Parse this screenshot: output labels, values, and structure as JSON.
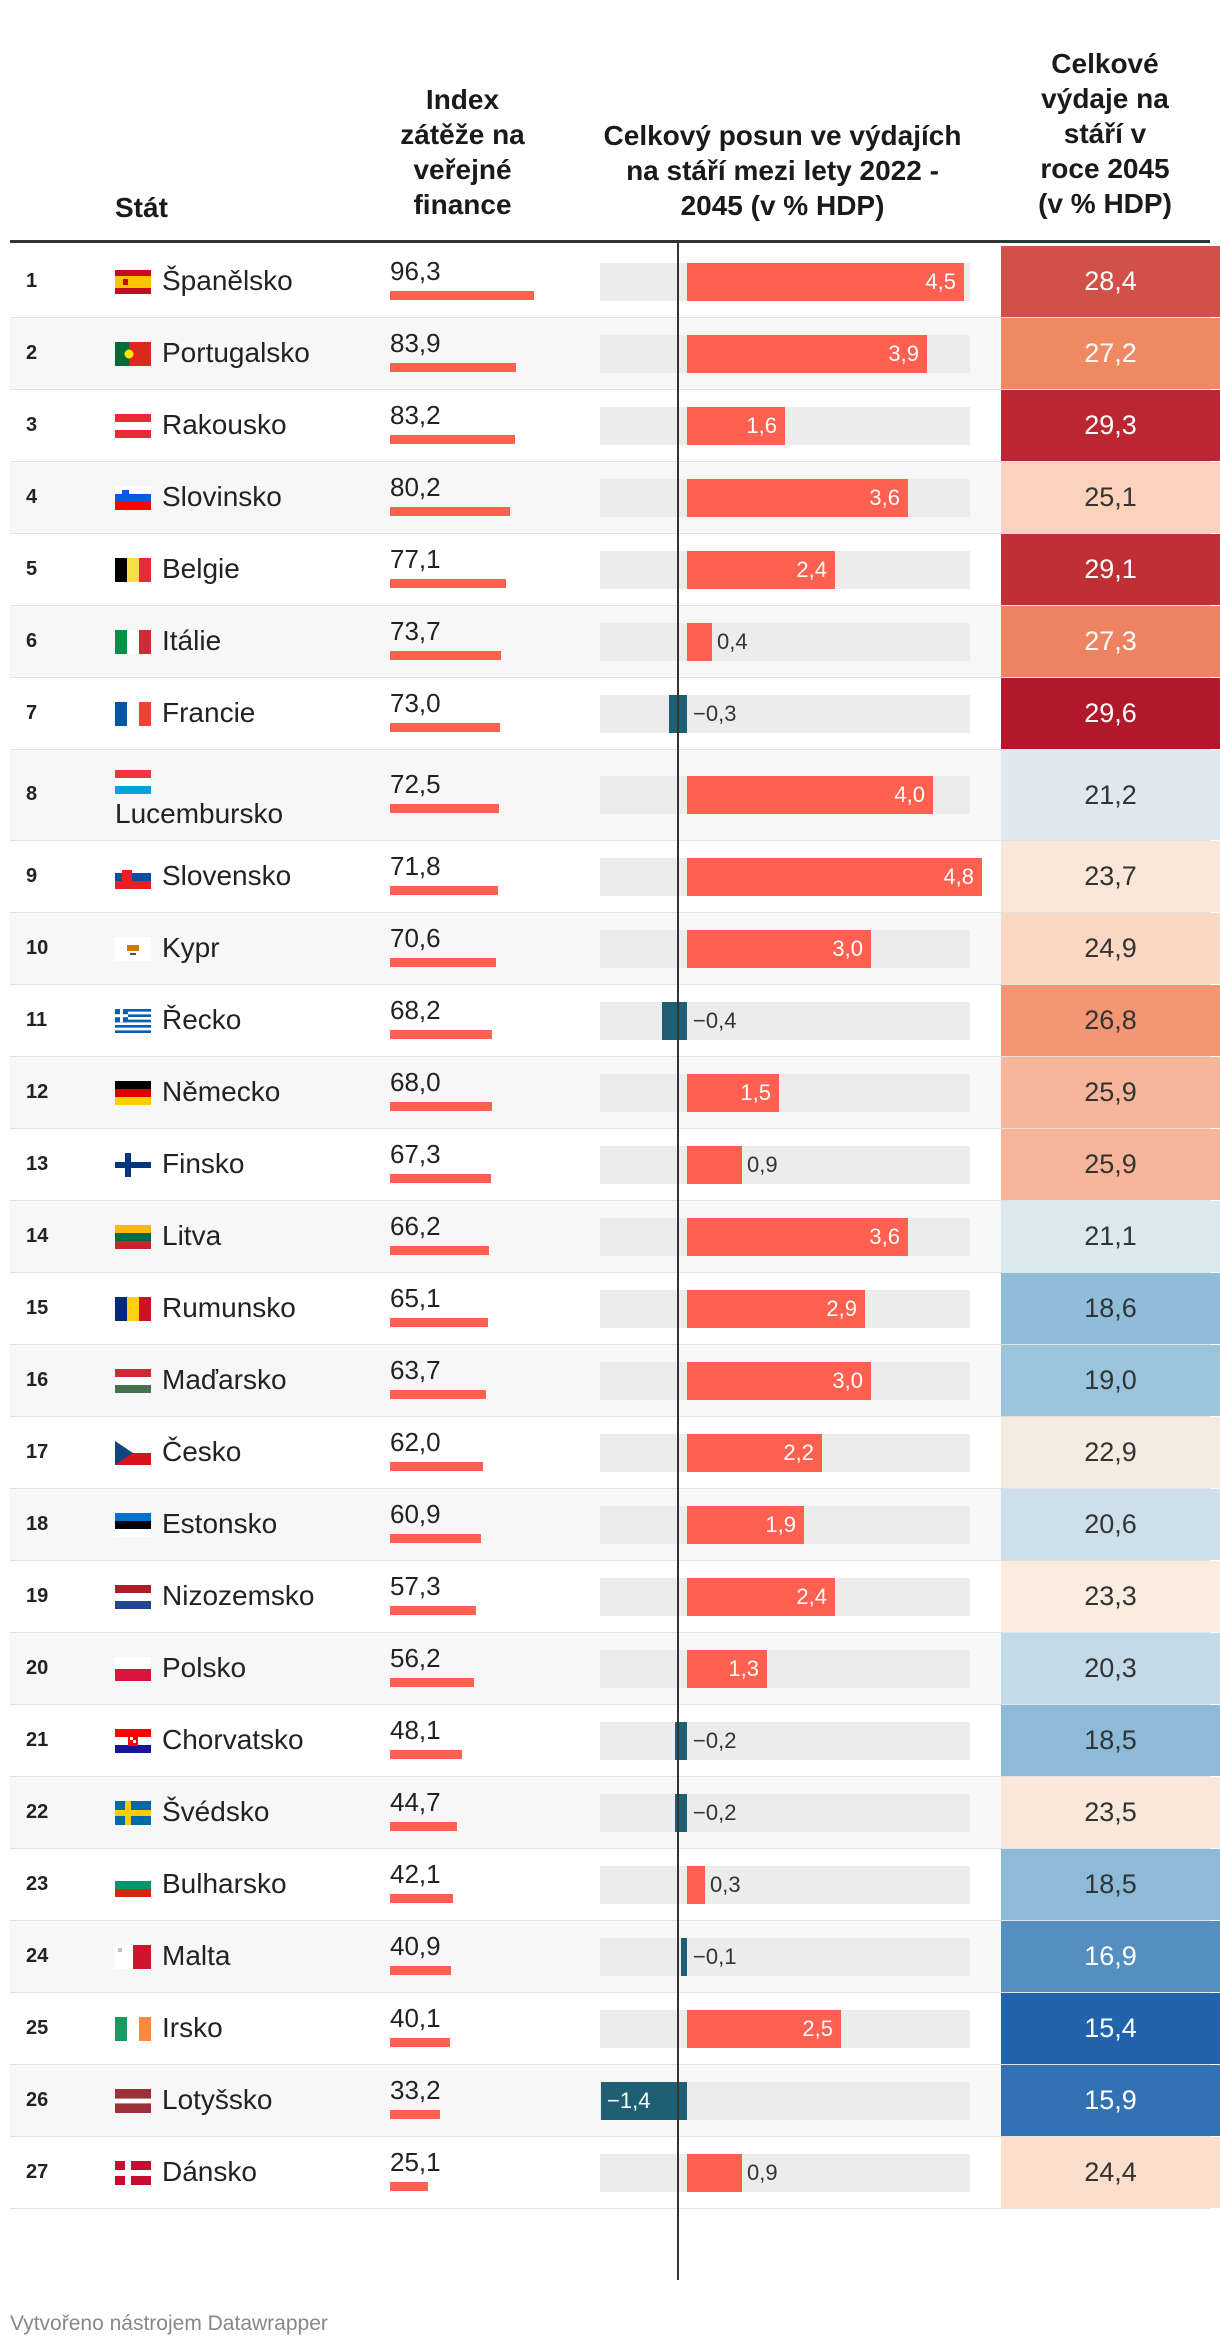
{
  "headers": {
    "country": "Stát",
    "index_lines": [
      "Index",
      "zátěže na",
      "veřejné",
      "finance"
    ],
    "shift_lines": [
      "Celkový posun ve výdajích",
      "na stáří mezi lety 2022 -",
      "2045 (v % HDP)"
    ],
    "total_lines": [
      "Celkové",
      "výdaje na",
      "stáří v",
      "roce 2045",
      "(v % HDP)"
    ]
  },
  "footer": "Vytvořeno nástrojem Datawrapper",
  "colors": {
    "positive_bar": "#ff6050",
    "negative_bar": "#1f5f74",
    "bar_background": "#ececec"
  },
  "chart_data": {
    "type": "table",
    "title": "",
    "columns": [
      "Stát",
      "Index zátěže na veřejné finance",
      "Celkový posun ve výdajích na stáří mezi lety 2022 - 2045 (v % HDP)",
      "Celkové výdaje na stáří v roce 2045 (v % HDP)"
    ],
    "shift_range": [
      -1.4,
      4.8
    ],
    "index_range": [
      0,
      100
    ],
    "rows": [
      {
        "rank": "1",
        "country": "Španělsko",
        "flag": "spain-flag",
        "index": 96.3,
        "index_label": "96,3",
        "shift": 4.5,
        "shift_label": "4,5",
        "total": 28.4,
        "total_label": "28,4"
      },
      {
        "rank": "2",
        "country": "Portugalsko",
        "flag": "portugal-flag",
        "index": 83.9,
        "index_label": "83,9",
        "shift": 3.9,
        "shift_label": "3,9",
        "total": 27.2,
        "total_label": "27,2"
      },
      {
        "rank": "3",
        "country": "Rakousko",
        "flag": "austria-flag",
        "index": 83.2,
        "index_label": "83,2",
        "shift": 1.6,
        "shift_label": "1,6",
        "total": 29.3,
        "total_label": "29,3"
      },
      {
        "rank": "4",
        "country": "Slovinsko",
        "flag": "slovenia-flag",
        "index": 80.2,
        "index_label": "80,2",
        "shift": 3.6,
        "shift_label": "3,6",
        "total": 25.1,
        "total_label": "25,1"
      },
      {
        "rank": "5",
        "country": "Belgie",
        "flag": "belgium-flag",
        "index": 77.1,
        "index_label": "77,1",
        "shift": 2.4,
        "shift_label": "2,4",
        "total": 29.1,
        "total_label": "29,1"
      },
      {
        "rank": "6",
        "country": "Itálie",
        "flag": "italy-flag",
        "index": 73.7,
        "index_label": "73,7",
        "shift": 0.4,
        "shift_label": "0,4",
        "total": 27.3,
        "total_label": "27,3"
      },
      {
        "rank": "7",
        "country": "Francie",
        "flag": "france-flag",
        "index": 73.0,
        "index_label": "73,0",
        "shift": -0.3,
        "shift_label": "−0,3",
        "total": 29.6,
        "total_label": "29,6"
      },
      {
        "rank": "8",
        "country": "Lucembursko",
        "flag": "luxembourg-flag",
        "index": 72.5,
        "index_label": "72,5",
        "shift": 4.0,
        "shift_label": "4,0",
        "total": 21.2,
        "total_label": "21,2"
      },
      {
        "rank": "9",
        "country": "Slovensko",
        "flag": "slovakia-flag",
        "index": 71.8,
        "index_label": "71,8",
        "shift": 4.8,
        "shift_label": "4,8",
        "total": 23.7,
        "total_label": "23,7"
      },
      {
        "rank": "10",
        "country": "Kypr",
        "flag": "cyprus-flag",
        "index": 70.6,
        "index_label": "70,6",
        "shift": 3.0,
        "shift_label": "3,0",
        "total": 24.9,
        "total_label": "24,9"
      },
      {
        "rank": "11",
        "country": "Řecko",
        "flag": "greece-flag",
        "index": 68.2,
        "index_label": "68,2",
        "shift": -0.4,
        "shift_label": "−0,4",
        "total": 26.8,
        "total_label": "26,8"
      },
      {
        "rank": "12",
        "country": "Německo",
        "flag": "germany-flag",
        "index": 68.0,
        "index_label": "68,0",
        "shift": 1.5,
        "shift_label": "1,5",
        "total": 25.9,
        "total_label": "25,9"
      },
      {
        "rank": "13",
        "country": "Finsko",
        "flag": "finland-flag",
        "index": 67.3,
        "index_label": "67,3",
        "shift": 0.9,
        "shift_label": "0,9",
        "total": 25.9,
        "total_label": "25,9"
      },
      {
        "rank": "14",
        "country": "Litva",
        "flag": "lithuania-flag",
        "index": 66.2,
        "index_label": "66,2",
        "shift": 3.6,
        "shift_label": "3,6",
        "total": 21.1,
        "total_label": "21,1"
      },
      {
        "rank": "15",
        "country": "Rumunsko",
        "flag": "romania-flag",
        "index": 65.1,
        "index_label": "65,1",
        "shift": 2.9,
        "shift_label": "2,9",
        "total": 18.6,
        "total_label": "18,6"
      },
      {
        "rank": "16",
        "country": "Maďarsko",
        "flag": "hungary-flag",
        "index": 63.7,
        "index_label": "63,7",
        "shift": 3.0,
        "shift_label": "3,0",
        "total": 19.0,
        "total_label": "19,0"
      },
      {
        "rank": "17",
        "country": "Česko",
        "flag": "czechia-flag",
        "index": 62.0,
        "index_label": "62,0",
        "shift": 2.2,
        "shift_label": "2,2",
        "total": 22.9,
        "total_label": "22,9"
      },
      {
        "rank": "18",
        "country": "Estonsko",
        "flag": "estonia-flag",
        "index": 60.9,
        "index_label": "60,9",
        "shift": 1.9,
        "shift_label": "1,9",
        "total": 20.6,
        "total_label": "20,6"
      },
      {
        "rank": "19",
        "country": "Nizozemsko",
        "flag": "netherlands-flag",
        "index": 57.3,
        "index_label": "57,3",
        "shift": 2.4,
        "shift_label": "2,4",
        "total": 23.3,
        "total_label": "23,3"
      },
      {
        "rank": "20",
        "country": "Polsko",
        "flag": "poland-flag",
        "index": 56.2,
        "index_label": "56,2",
        "shift": 1.3,
        "shift_label": "1,3",
        "total": 20.3,
        "total_label": "20,3"
      },
      {
        "rank": "21",
        "country": "Chorvatsko",
        "flag": "croatia-flag",
        "index": 48.1,
        "index_label": "48,1",
        "shift": -0.2,
        "shift_label": "−0,2",
        "total": 18.5,
        "total_label": "18,5"
      },
      {
        "rank": "22",
        "country": "Švédsko",
        "flag": "sweden-flag",
        "index": 44.7,
        "index_label": "44,7",
        "shift": -0.2,
        "shift_label": "−0,2",
        "total": 23.5,
        "total_label": "23,5"
      },
      {
        "rank": "23",
        "country": "Bulharsko",
        "flag": "bulgaria-flag",
        "index": 42.1,
        "index_label": "42,1",
        "shift": 0.3,
        "shift_label": "0,3",
        "total": 18.5,
        "total_label": "18,5"
      },
      {
        "rank": "24",
        "country": "Malta",
        "flag": "malta-flag",
        "index": 40.9,
        "index_label": "40,9",
        "shift": -0.1,
        "shift_label": "−0,1",
        "total": 16.9,
        "total_label": "16,9"
      },
      {
        "rank": "25",
        "country": "Irsko",
        "flag": "ireland-flag",
        "index": 40.1,
        "index_label": "40,1",
        "shift": 2.5,
        "shift_label": "2,5",
        "total": 15.4,
        "total_label": "15,4"
      },
      {
        "rank": "26",
        "country": "Lotyšsko",
        "flag": "latvia-flag",
        "index": 33.2,
        "index_label": "33,2",
        "shift": -1.4,
        "shift_label": "−1,4",
        "total": 15.9,
        "total_label": "15,9"
      },
      {
        "rank": "27",
        "country": "Dánsko",
        "flag": "denmark-flag",
        "index": 25.1,
        "index_label": "25,1",
        "shift": 0.9,
        "shift_label": "0,9",
        "total": 24.4,
        "total_label": "24,4"
      }
    ]
  }
}
